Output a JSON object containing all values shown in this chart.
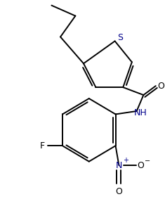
{
  "bg_color": "#ffffff",
  "line_color": "#000000",
  "text_color": "#000000",
  "blue_color": "#00008B",
  "bond_width": 1.4,
  "figsize": [
    2.35,
    3.0
  ],
  "dpi": 100,
  "xlim": [
    0,
    235
  ],
  "ylim": [
    0,
    300
  ]
}
